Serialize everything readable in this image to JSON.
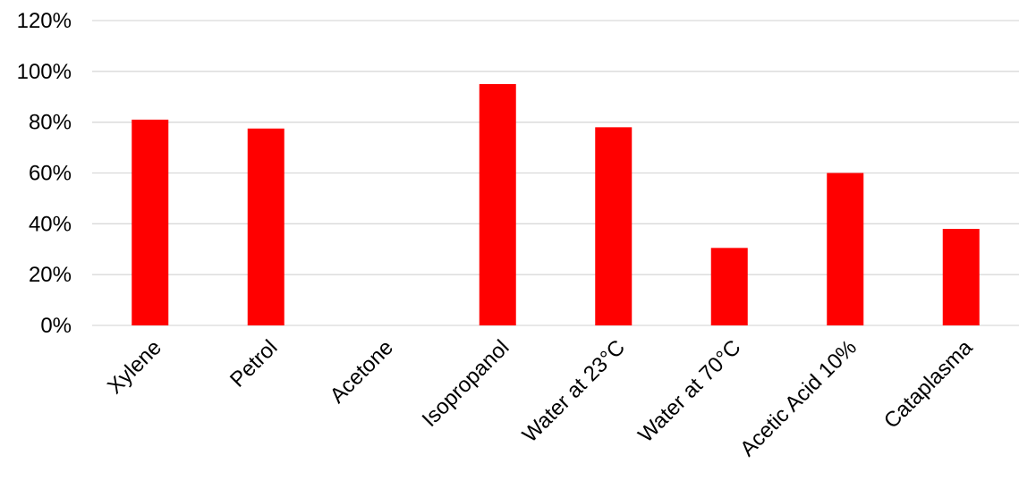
{
  "chart_data": {
    "type": "bar",
    "title": "",
    "xlabel": "",
    "ylabel": "",
    "categories": [
      "Xylene",
      "Petrol",
      "Acetone",
      "Isopropanol",
      "Water at 23°C",
      "Water at 70°C",
      "Acetic Acid 10%",
      "Cataplasma"
    ],
    "values": [
      0.81,
      0.775,
      0,
      0.95,
      0.78,
      0.305,
      0.6,
      0.38
    ],
    "ylim": [
      0,
      1.2
    ],
    "yticks": [
      0,
      0.2,
      0.4,
      0.6,
      0.8,
      1.0,
      1.2
    ],
    "ytick_labels": [
      "0%",
      "20%",
      "40%",
      "60%",
      "80%",
      "100%",
      "120%"
    ],
    "grid": true,
    "legend": "none",
    "colors": {
      "bar": "#ff0000",
      "grid": "#d9d9d9",
      "text": "#000000"
    }
  }
}
